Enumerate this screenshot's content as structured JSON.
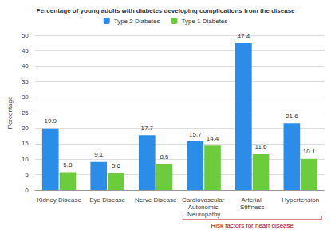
{
  "chart_data": {
    "type": "bar",
    "title": "Percentage of young adults with diabetes developing complications from the disease",
    "y_label": "Percentage",
    "categories": [
      "Kidney Disease",
      "Eye Disease",
      "Nerve Disease",
      "Cardiovascular Autonomic Neuropathy",
      "Arterial Stiffness",
      "Hypertension"
    ],
    "series": [
      {
        "name": "Type 2 Diabetes",
        "color": "#2b8de8",
        "values": [
          19.9,
          9.1,
          17.7,
          15.7,
          47.4,
          21.6
        ]
      },
      {
        "name": "Type 1 Diabetes",
        "color": "#6ccc3c",
        "values": [
          5.8,
          5.6,
          8.5,
          14.4,
          11.6,
          10.1
        ]
      }
    ],
    "ylim": [
      0,
      50
    ],
    "yticks": [
      0,
      5,
      10,
      15,
      20,
      25,
      30,
      35,
      40,
      45,
      50
    ],
    "grid": true,
    "legend": "top",
    "data_labels": true,
    "annotations": [
      {
        "text": "Risk factors for heart disease",
        "categories": [
          "Cardiovascular Autonomic Neuropathy",
          "Arterial Stiffness",
          "Hypertension"
        ]
      }
    ]
  }
}
